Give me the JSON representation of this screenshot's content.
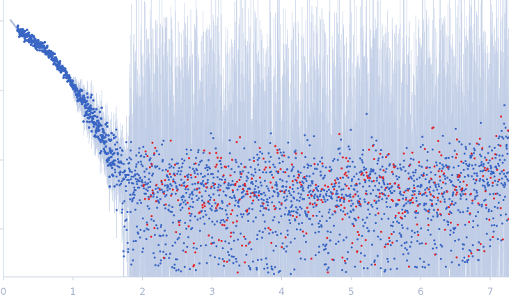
{
  "chart_data": {
    "type": "scatter",
    "title": "",
    "xlabel": "",
    "ylabel": "",
    "xlim": [
      0,
      7.27
    ],
    "y_scale": "log",
    "ylim": [
      0.0003,
      0.2
    ],
    "x_ticks": [
      "0",
      "1",
      "2",
      "3",
      "4",
      "5",
      "6",
      "7"
    ],
    "y_ticks_shown_without_labels": 4,
    "grid": false,
    "legend": "none",
    "colors": {
      "main_points": "#3a66c4",
      "outlier_points": "#e0242a",
      "error_bars": "#bfcde6",
      "low_q_points": "#aebfdf",
      "axis": "#c6cfe0",
      "tick_labels": "#a9b6cf"
    },
    "series": [
      {
        "role": "main",
        "x": [
          0.2,
          0.3,
          0.4,
          0.5,
          0.6,
          0.7,
          0.8,
          0.9,
          1.0,
          1.1,
          1.2,
          1.3,
          1.4,
          1.5,
          1.6,
          1.7,
          1.8,
          2.0,
          2.5,
          3.0,
          3.5,
          4.0,
          4.5,
          5.0,
          5.5,
          6.0,
          6.5,
          6.9,
          7.1,
          7.2
        ],
        "y": [
          0.1,
          0.09,
          0.08,
          0.07,
          0.062,
          0.052,
          0.043,
          0.035,
          0.027,
          0.021,
          0.016,
          0.012,
          0.0085,
          0.0062,
          0.0047,
          0.0037,
          0.0032,
          0.003,
          0.0027,
          0.0026,
          0.0025,
          0.0025,
          0.0025,
          0.0026,
          0.0027,
          0.0028,
          0.003,
          0.0036,
          0.0045,
          0.006
        ]
      },
      {
        "role": "outliers",
        "x_range": [
          2.0,
          7.27
        ],
        "y_range": [
          0.0005,
          0.004
        ]
      }
    ]
  }
}
